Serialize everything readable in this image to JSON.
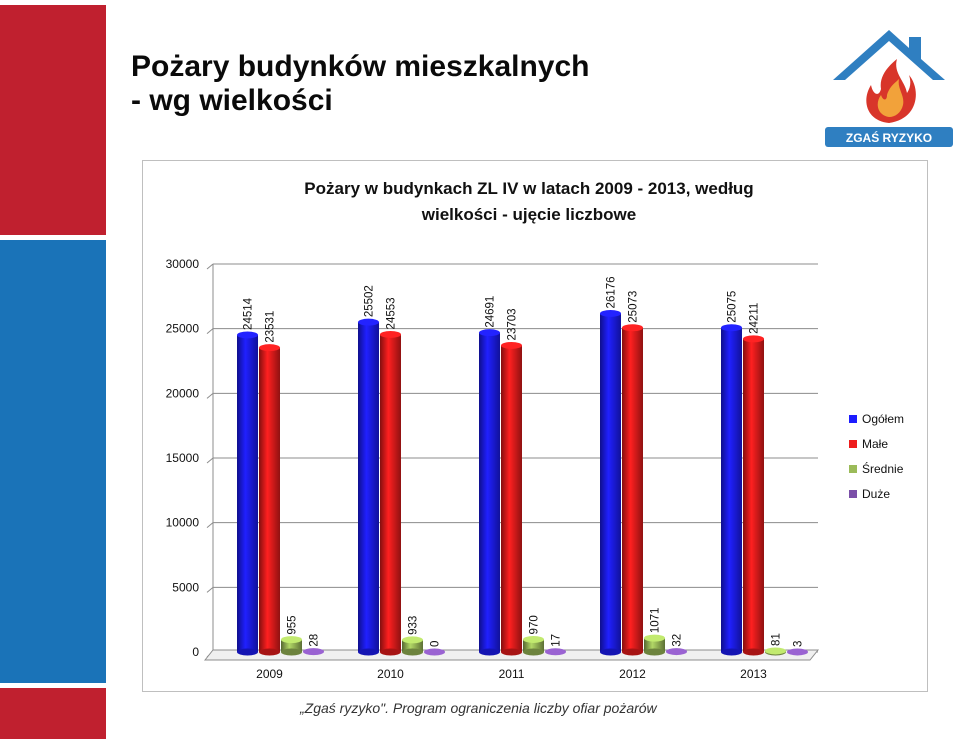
{
  "slide": {
    "title_line1": "Pożary budynków mieszkalnych",
    "title_line2": "- wg wielkości",
    "footer": "„Zgaś ryzyko\". Program ograniczenia liczby ofiar pożarów",
    "logo_text": "ZGAŚ RYZYKO",
    "colors": {
      "red_strip": "#c0202f",
      "blue_strip": "#1a73b8"
    }
  },
  "chart_data": {
    "type": "bar",
    "title_line1": "Pożary w budynkach ZL IV w latach 2009 - 2013, według",
    "title_line2": "wielkości - ujęcie liczbowe",
    "categories": [
      "2009",
      "2010",
      "2011",
      "2012",
      "2013"
    ],
    "series": [
      {
        "name": "Ogółem",
        "color": "#1c1cff",
        "values": [
          24514,
          25502,
          24691,
          26176,
          25075
        ]
      },
      {
        "name": "Małe",
        "color": "#ee1c1c",
        "values": [
          23531,
          24553,
          23703,
          25073,
          24211
        ]
      },
      {
        "name": "Średnie",
        "color": "#9bbb59",
        "values": [
          955,
          933,
          970,
          1071,
          81
        ]
      },
      {
        "name": "Duże",
        "color": "#7b4fa8",
        "values": [
          28,
          0,
          17,
          32,
          3
        ]
      }
    ],
    "ylim": [
      0,
      30000
    ],
    "yticks": [
      "0",
      "5000",
      "10000",
      "15000",
      "20000",
      "25000",
      "30000"
    ],
    "grid": true,
    "legend": "right"
  }
}
